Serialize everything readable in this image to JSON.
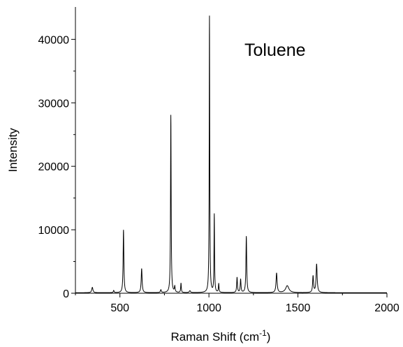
{
  "chart_data": {
    "type": "line",
    "title": "",
    "xlabel": "Raman Shift (cm",
    "xlabel_sup": "-1",
    "xlabel_end": ")",
    "ylabel": "Intensity",
    "annotation": "Toluene",
    "xlim": [
      250,
      2000
    ],
    "ylim": [
      0,
      44000
    ],
    "x_ticks": [
      {
        "value": 500,
        "label": "500"
      },
      {
        "value": 1000,
        "label": "1000"
      },
      {
        "value": 1500,
        "label": "1500"
      },
      {
        "value": 2000,
        "label": "2000"
      }
    ],
    "y_ticks": [
      {
        "value": 0,
        "label": "0"
      },
      {
        "value": 10000,
        "label": "10000"
      },
      {
        "value": 20000,
        "label": "20000"
      },
      {
        "value": 30000,
        "label": "30000"
      },
      {
        "value": 40000,
        "label": "40000"
      }
    ],
    "grid": false,
    "series": [
      {
        "color": "#000000",
        "peaks": [
          {
            "x": 345,
            "y": 850,
            "w": 8
          },
          {
            "x": 465,
            "y": 350,
            "w": 5
          },
          {
            "x": 520,
            "y": 9900,
            "w": 5
          },
          {
            "x": 622,
            "y": 3800,
            "w": 6
          },
          {
            "x": 730,
            "y": 450,
            "w": 6
          },
          {
            "x": 786,
            "y": 28000,
            "w": 4
          },
          {
            "x": 808,
            "y": 900,
            "w": 5
          },
          {
            "x": 843,
            "y": 1500,
            "w": 4
          },
          {
            "x": 893,
            "y": 300,
            "w": 8
          },
          {
            "x": 1003,
            "y": 43600,
            "w": 3.5
          },
          {
            "x": 1030,
            "y": 12300,
            "w": 3.5
          },
          {
            "x": 1055,
            "y": 1400,
            "w": 4
          },
          {
            "x": 1158,
            "y": 2400,
            "w": 5
          },
          {
            "x": 1178,
            "y": 2100,
            "w": 5
          },
          {
            "x": 1210,
            "y": 8900,
            "w": 5
          },
          {
            "x": 1380,
            "y": 3100,
            "w": 7
          },
          {
            "x": 1440,
            "y": 1100,
            "w": 22
          },
          {
            "x": 1585,
            "y": 2600,
            "w": 6
          },
          {
            "x": 1605,
            "y": 4500,
            "w": 7
          }
        ]
      }
    ]
  }
}
